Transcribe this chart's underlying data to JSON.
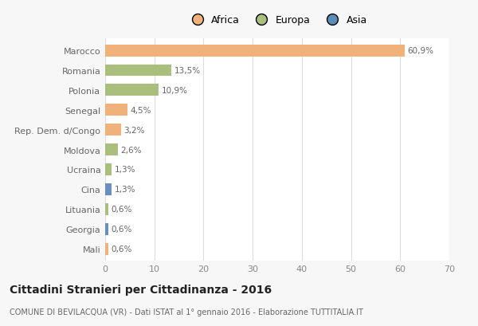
{
  "categories": [
    "Marocco",
    "Romania",
    "Polonia",
    "Senegal",
    "Rep. Dem. d/Congo",
    "Moldova",
    "Ucraina",
    "Cina",
    "Lituania",
    "Georgia",
    "Mali"
  ],
  "values": [
    60.9,
    13.5,
    10.9,
    4.5,
    3.2,
    2.6,
    1.3,
    1.3,
    0.6,
    0.6,
    0.6
  ],
  "labels": [
    "60,9%",
    "13,5%",
    "10,9%",
    "4,5%",
    "3,2%",
    "2,6%",
    "1,3%",
    "1,3%",
    "0,6%",
    "0,6%",
    "0,6%"
  ],
  "colors": [
    "#F0B27A",
    "#AABF7E",
    "#AABF7E",
    "#F0B27A",
    "#F0B27A",
    "#AABF7E",
    "#AABF7E",
    "#6B8EC0",
    "#AABF7E",
    "#6B8EC0",
    "#F0B27A"
  ],
  "legend_labels": [
    "Africa",
    "Europa",
    "Asia"
  ],
  "legend_colors": [
    "#F0B27A",
    "#AABF7E",
    "#5B8DB8"
  ],
  "title": "Cittadini Stranieri per Cittadinanza - 2016",
  "subtitle": "COMUNE DI BEVILACQUA (VR) - Dati ISTAT al 1° gennaio 2016 - Elaborazione TUTTITALIA.IT",
  "xlim": [
    0,
    70
  ],
  "xticks": [
    0,
    10,
    20,
    30,
    40,
    50,
    60,
    70
  ],
  "bg_color": "#f7f7f7",
  "bar_bg_color": "#ffffff",
  "grid_color": "#dddddd"
}
